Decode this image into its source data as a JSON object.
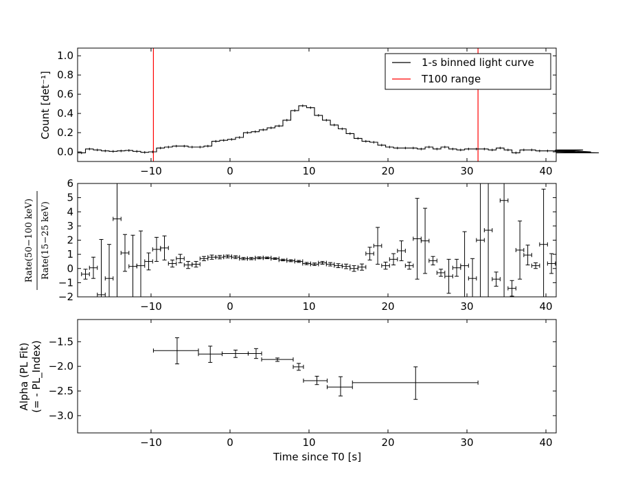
{
  "chart_data": [
    {
      "type": "line",
      "ylabel": "Count [det⁻¹]",
      "xlim": [
        -19.3,
        41.3
      ],
      "ylim": [
        -0.1,
        1.08
      ],
      "x_ticks": [
        -10,
        0,
        10,
        20,
        30,
        40
      ],
      "y_ticks": [
        0.0,
        0.2,
        0.4,
        0.6,
        0.8,
        1.0
      ],
      "y_tick_labels": [
        "0.0",
        "0.2",
        "0.4",
        "0.6",
        "0.8",
        "1.0"
      ],
      "legend": {
        "placement": "top-right",
        "entries": [
          {
            "label": "1-s binned light curve",
            "color": "#000000"
          },
          {
            "label": "T100 range",
            "color": "#ff0000"
          }
        ]
      },
      "t100_range": [
        -9.7,
        31.4
      ],
      "series": [
        {
          "name": "1-s binned light curve",
          "x_start": -19.3,
          "bin_width": 1,
          "values": [
            -0.01,
            0.03,
            0.02,
            0.01,
            0.005,
            0.01,
            0.015,
            0.005,
            -0.005,
            0.0,
            0.04,
            0.05,
            0.06,
            0.06,
            0.05,
            0.05,
            0.06,
            0.11,
            0.12,
            0.13,
            0.15,
            0.2,
            0.21,
            0.23,
            0.25,
            0.27,
            0.33,
            0.43,
            0.48,
            0.46,
            0.38,
            0.33,
            0.28,
            0.24,
            0.19,
            0.14,
            0.11,
            0.1,
            0.07,
            0.05,
            0.04,
            0.04,
            0.04,
            0.03,
            0.05,
            0.03,
            0.05,
            0.03,
            0.02,
            0.03,
            0.03,
            0.03,
            0.02,
            0.04,
            0.02,
            -0.01,
            0.02,
            0.02,
            0.01,
            0.01,
            0.01,
            0.005,
            0.01,
            0.005,
            0.02,
            0.0,
            -0.01
          ],
          "err": 0.013
        }
      ]
    },
    {
      "type": "scatter",
      "ylabel": "Rate(50−100 keV) / Rate(15−25 keV)",
      "ylabel_num": "Rate(50−100 keV)",
      "ylabel_den": "Rate(15−25 keV)",
      "xlim": [
        -19.3,
        41.3
      ],
      "ylim": [
        -2,
        6
      ],
      "x_ticks": [
        -10,
        0,
        10,
        20,
        30,
        40
      ],
      "y_ticks": [
        -2,
        -1,
        0,
        1,
        2,
        3,
        4,
        5,
        6
      ],
      "x_tick_labels": [
        "−10",
        "0",
        "10",
        "20",
        "30",
        "40"
      ],
      "y_tick_labels": [
        "−2",
        "−1",
        "0",
        "1",
        "2",
        "3",
        "4",
        "5",
        "6"
      ],
      "points": [
        {
          "x": -18.3,
          "y": -0.4,
          "err": 0.35
        },
        {
          "x": -17.3,
          "y": 0.05,
          "err": 0.75
        },
        {
          "x": -16.3,
          "y": -1.85,
          "err": 3.9
        },
        {
          "x": -15.3,
          "y": -0.7,
          "err": 2.4
        },
        {
          "x": -14.3,
          "y": 3.5,
          "err": 5.8
        },
        {
          "x": -13.3,
          "y": 1.1,
          "err": 1.3
        },
        {
          "x": -12.3,
          "y": 0.15,
          "err": 2.2
        },
        {
          "x": -11.3,
          "y": 0.2,
          "err": 2.45
        },
        {
          "x": -10.3,
          "y": 0.5,
          "err": 0.6
        },
        {
          "x": -9.3,
          "y": 1.35,
          "err": 0.85
        },
        {
          "x": -8.3,
          "y": 1.45,
          "err": 0.85
        },
        {
          "x": -7.3,
          "y": 0.35,
          "err": 0.25
        },
        {
          "x": -6.3,
          "y": 0.7,
          "err": 0.3
        },
        {
          "x": -5.3,
          "y": 0.25,
          "err": 0.25
        },
        {
          "x": -4.3,
          "y": 0.3,
          "err": 0.2
        },
        {
          "x": -3.3,
          "y": 0.7,
          "err": 0.15
        },
        {
          "x": -2.3,
          "y": 0.8,
          "err": 0.15
        },
        {
          "x": -1.3,
          "y": 0.8,
          "err": 0.12
        },
        {
          "x": -0.3,
          "y": 0.85,
          "err": 0.1
        },
        {
          "x": 0.7,
          "y": 0.8,
          "err": 0.1
        },
        {
          "x": 1.7,
          "y": 0.7,
          "err": 0.08
        },
        {
          "x": 2.7,
          "y": 0.7,
          "err": 0.08
        },
        {
          "x": 3.7,
          "y": 0.75,
          "err": 0.07
        },
        {
          "x": 4.7,
          "y": 0.75,
          "err": 0.06
        },
        {
          "x": 5.7,
          "y": 0.7,
          "err": 0.06
        },
        {
          "x": 6.7,
          "y": 0.6,
          "err": 0.06
        },
        {
          "x": 7.7,
          "y": 0.55,
          "err": 0.07
        },
        {
          "x": 8.7,
          "y": 0.5,
          "err": 0.07
        },
        {
          "x": 9.7,
          "y": 0.35,
          "err": 0.08
        },
        {
          "x": 10.7,
          "y": 0.3,
          "err": 0.09
        },
        {
          "x": 11.7,
          "y": 0.4,
          "err": 0.1
        },
        {
          "x": 12.7,
          "y": 0.3,
          "err": 0.12
        },
        {
          "x": 13.7,
          "y": 0.2,
          "err": 0.14
        },
        {
          "x": 14.7,
          "y": 0.15,
          "err": 0.16
        },
        {
          "x": 15.7,
          "y": 0.0,
          "err": 0.2
        },
        {
          "x": 16.7,
          "y": 0.1,
          "err": 0.22
        },
        {
          "x": 17.7,
          "y": 1.05,
          "err": 0.45
        },
        {
          "x": 18.7,
          "y": 1.6,
          "err": 1.3
        },
        {
          "x": 19.7,
          "y": 0.2,
          "err": 0.25
        },
        {
          "x": 20.7,
          "y": 0.65,
          "err": 0.4
        },
        {
          "x": 21.7,
          "y": 1.25,
          "err": 0.7
        },
        {
          "x": 22.7,
          "y": 0.2,
          "err": 0.25
        },
        {
          "x": 23.7,
          "y": 2.1,
          "err": 2.85
        },
        {
          "x": 24.7,
          "y": 1.95,
          "err": 2.3
        },
        {
          "x": 25.7,
          "y": 0.55,
          "err": 0.3
        },
        {
          "x": 26.7,
          "y": -0.3,
          "err": 0.25
        },
        {
          "x": 27.7,
          "y": -0.55,
          "err": 1.2
        },
        {
          "x": 28.7,
          "y": 0.05,
          "err": 0.6
        },
        {
          "x": 29.7,
          "y": 0.2,
          "err": 2.4
        },
        {
          "x": 30.7,
          "y": -0.7,
          "err": 1.4
        },
        {
          "x": 31.7,
          "y": 2.0,
          "err": 6.5
        },
        {
          "x": 32.7,
          "y": 2.7,
          "err": 6.0
        },
        {
          "x": 33.7,
          "y": -0.75,
          "err": 0.5
        },
        {
          "x": 34.7,
          "y": 4.8,
          "err": 7.0
        },
        {
          "x": 35.7,
          "y": -1.4,
          "err": 0.55
        },
        {
          "x": 36.7,
          "y": 1.3,
          "err": 2.05
        },
        {
          "x": 37.7,
          "y": 0.95,
          "err": 0.7
        },
        {
          "x": 38.7,
          "y": 0.2,
          "err": 0.2
        },
        {
          "x": 39.7,
          "y": 1.7,
          "err": 3.9
        },
        {
          "x": 40.7,
          "y": 0.35,
          "err": 0.7
        }
      ]
    },
    {
      "type": "scatter",
      "ylabel": "Alpha (PL Fit)",
      "ylabel2": "(= - PL_Index)",
      "xlabel": "Time since T0 [s]",
      "xlim": [
        -19.3,
        41.3
      ],
      "ylim": [
        -3.35,
        -1.05
      ],
      "x_ticks": [
        -10,
        0,
        10,
        20,
        30,
        40
      ],
      "y_ticks": [
        -3.0,
        -2.5,
        -2.0,
        -1.5
      ],
      "x_tick_labels": [
        "−10",
        "0",
        "10",
        "20",
        "30",
        "40"
      ],
      "y_tick_labels": [
        "−3.0",
        "−2.5",
        "−2.0",
        "−1.5"
      ],
      "points": [
        {
          "x": -6.7,
          "xlo": -9.7,
          "xhi": -4.0,
          "y": -1.68,
          "ylo": -1.95,
          "yhi": -1.42
        },
        {
          "x": -2.5,
          "xlo": -4.0,
          "xhi": -1.0,
          "y": -1.75,
          "ylo": -1.92,
          "yhi": -1.59
        },
        {
          "x": 0.7,
          "xlo": -1.0,
          "xhi": 2.3,
          "y": -1.74,
          "ylo": -1.82,
          "yhi": -1.67
        },
        {
          "x": 3.3,
          "xlo": 2.3,
          "xhi": 4.0,
          "y": -1.74,
          "ylo": -1.84,
          "yhi": -1.64
        },
        {
          "x": 6.0,
          "xlo": 4.0,
          "xhi": 8.0,
          "y": -1.86,
          "ylo": -1.9,
          "yhi": -1.83
        },
        {
          "x": 8.7,
          "xlo": 8.0,
          "xhi": 9.3,
          "y": -2.01,
          "ylo": -2.08,
          "yhi": -1.94
        },
        {
          "x": 11.0,
          "xlo": 9.3,
          "xhi": 12.3,
          "y": -2.29,
          "ylo": -2.37,
          "yhi": -2.2
        },
        {
          "x": 14.0,
          "xlo": 12.3,
          "xhi": 15.5,
          "y": -2.42,
          "ylo": -2.6,
          "yhi": -2.21
        },
        {
          "x": 23.5,
          "xlo": 15.5,
          "xhi": 31.4,
          "y": -2.33,
          "ylo": -2.67,
          "yhi": -2.01
        }
      ]
    }
  ]
}
